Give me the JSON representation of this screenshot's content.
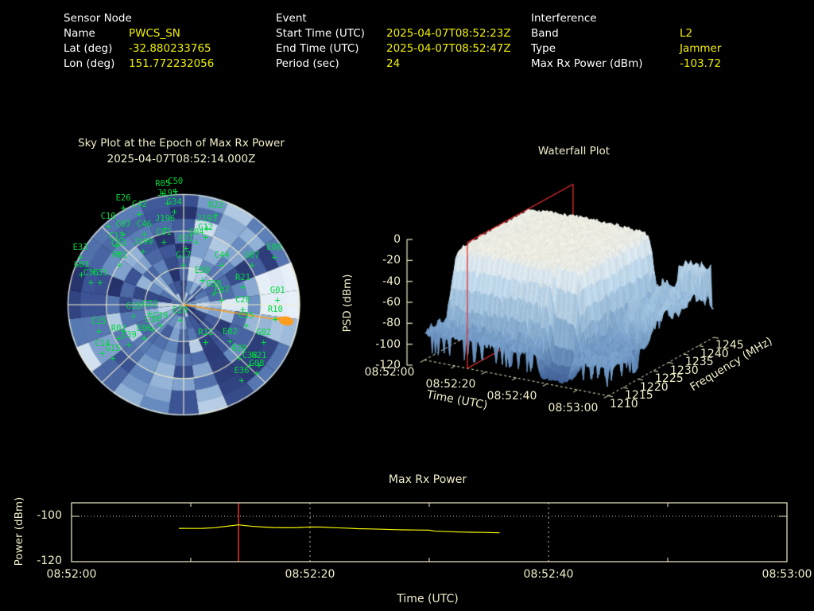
{
  "header": {
    "sensor_node": {
      "title": "Sensor Node",
      "rows": [
        {
          "label": "Name",
          "value": "PWCS_SN"
        },
        {
          "label": "Lat (deg)",
          "value": "-32.880233765"
        },
        {
          "label": "Lon (deg)",
          "value": "151.772232056"
        }
      ]
    },
    "event": {
      "title": "Event",
      "rows": [
        {
          "label": "Start Time (UTC)",
          "value": "2025-04-07T08:52:23Z"
        },
        {
          "label": "End Time (UTC)",
          "value": "2025-04-07T08:52:47Z"
        },
        {
          "label": "Period (sec)",
          "value": "24"
        }
      ]
    },
    "interference": {
      "title": "Interference",
      "rows": [
        {
          "label": "Band",
          "value": "L2"
        },
        {
          "label": "Type",
          "value": "Jammer"
        },
        {
          "label": "Max Rx Power (dBm)",
          "value": "-103.72"
        }
      ]
    }
  },
  "colors": {
    "background": "#000000",
    "label_white": "#ffffff",
    "value_yellow": "#f0f000",
    "axis_cream": "#f2eecb",
    "satellite_green": "#00d93e",
    "bearing_orange": "#ff9d1e",
    "epoch_red": "#e62e2e",
    "power_line_yellow": "#f5f500",
    "sky_palette": [
      "#232e66",
      "#3d5596",
      "#6186bc",
      "#94b3d7",
      "#c7d9eb",
      "#eff5fc"
    ],
    "wf_colors": [
      "#3e5e96",
      "#749cc8",
      "#9dc0dd",
      "#c6ddee",
      "#e2ebf0",
      "#f1edde",
      "#f8f2e0"
    ]
  },
  "chart_data": [
    {
      "type": "heatmap",
      "name": "sky_plot",
      "title": "Sky Plot at the Epoch of Max Rx Power",
      "subtitle": "2025-04-07T08:52:14.000Z",
      "projection": "polar-sky",
      "elevation_rings_deg": [
        0,
        30,
        60
      ],
      "azimuth_spokes_deg": [
        0,
        45,
        90,
        135,
        180,
        225,
        270,
        315
      ],
      "jammer_bearing": {
        "x": 0.885,
        "y": 0.14,
        "note": "orange bearing line from zenith to horizon marker"
      },
      "satellites": [
        {
          "id": "R05",
          "x": -0.18,
          "y": -1.01
        },
        {
          "id": "C50",
          "x": -0.07,
          "y": -1.03
        },
        {
          "id": "E26",
          "x": -0.52,
          "y": -0.88
        },
        {
          "id": "J195",
          "x": -0.14,
          "y": -0.92
        },
        {
          "id": "C42",
          "x": -0.38,
          "y": -0.82
        },
        {
          "id": "G34",
          "x": -0.08,
          "y": -0.84
        },
        {
          "id": "R22",
          "x": 0.28,
          "y": -0.81
        },
        {
          "id": "C10",
          "x": -0.65,
          "y": -0.71
        },
        {
          "id": "J196",
          "x": -0.16,
          "y": -0.69
        },
        {
          "id": "J193",
          "x": 0.2,
          "y": -0.69
        },
        {
          "id": "C07",
          "x": -0.52,
          "y": -0.64
        },
        {
          "id": "C46",
          "x": -0.34,
          "y": -0.64
        },
        {
          "id": "G12",
          "x": 0.19,
          "y": -0.61
        },
        {
          "id": "C11",
          "x": -0.58,
          "y": -0.53
        },
        {
          "id": "C03",
          "x": -0.56,
          "y": -0.47
        },
        {
          "id": "J199",
          "x": -0.35,
          "y": -0.48
        },
        {
          "id": "C01",
          "x": -0.17,
          "y": -0.57
        },
        {
          "id": "G04",
          "x": 0.11,
          "y": -0.57
        },
        {
          "id": "E21",
          "x": 0.02,
          "y": -0.51
        },
        {
          "id": "E33",
          "x": -0.89,
          "y": -0.43
        },
        {
          "id": "R01",
          "x": -0.55,
          "y": -0.36
        },
        {
          "id": "G17",
          "x": 0.0,
          "y": -0.36
        },
        {
          "id": "C44",
          "x": 0.33,
          "y": -0.36
        },
        {
          "id": "G07",
          "x": 0.59,
          "y": -0.36
        },
        {
          "id": "E08",
          "x": 0.78,
          "y": -0.43
        },
        {
          "id": "G03",
          "x": -0.88,
          "y": -0.27
        },
        {
          "id": "C36",
          "x": -0.8,
          "y": -0.2
        },
        {
          "id": "C33",
          "x": -0.72,
          "y": -0.2
        },
        {
          "id": "E50",
          "x": 0.16,
          "y": -0.22
        },
        {
          "id": "R21",
          "x": 0.51,
          "y": -0.16
        },
        {
          "id": "G30",
          "x": 0.26,
          "y": -0.1
        },
        {
          "id": "E07",
          "x": 0.33,
          "y": -0.04
        },
        {
          "id": "G01",
          "x": 0.81,
          "y": -0.04
        },
        {
          "id": "C26",
          "x": 0.51,
          "y": 0.04
        },
        {
          "id": "R10",
          "x": 0.79,
          "y": 0.13
        },
        {
          "id": "G18",
          "x": -0.43,
          "y": 0.1
        },
        {
          "id": "G22",
          "x": -0.29,
          "y": 0.08
        },
        {
          "id": "E20",
          "x": -0.03,
          "y": 0.14
        },
        {
          "id": "C39",
          "x": -0.2,
          "y": 0.19
        },
        {
          "id": "C34",
          "x": -0.27,
          "y": 0.22
        },
        {
          "id": "C35",
          "x": 0.54,
          "y": 0.19
        },
        {
          "id": "C25",
          "x": -0.73,
          "y": 0.24
        },
        {
          "id": "R02",
          "x": -0.56,
          "y": 0.3
        },
        {
          "id": "E06",
          "x": -0.34,
          "y": 0.3
        },
        {
          "id": "E39",
          "x": -0.47,
          "y": 0.36
        },
        {
          "id": "R11",
          "x": 0.19,
          "y": 0.34
        },
        {
          "id": "E02",
          "x": 0.4,
          "y": 0.33
        },
        {
          "id": "G02",
          "x": 0.69,
          "y": 0.34
        },
        {
          "id": "C14",
          "x": -0.7,
          "y": 0.44
        },
        {
          "id": "G15",
          "x": -0.61,
          "y": 0.48
        },
        {
          "id": "R20",
          "x": 0.48,
          "y": 0.48
        },
        {
          "id": "C38",
          "x": 0.57,
          "y": 0.55
        },
        {
          "id": "G21",
          "x": 0.65,
          "y": 0.55
        },
        {
          "id": "G08",
          "x": 0.63,
          "y": 0.62
        },
        {
          "id": "E36",
          "x": 0.5,
          "y": 0.68
        }
      ]
    },
    {
      "type": "heatmap",
      "name": "waterfall_3d_surface",
      "title": "Waterfall Plot",
      "xlabel": "Time (UTC)",
      "ylabel": "Frequency (MHz)",
      "zlabel": "PSD (dBm)",
      "time_ticks": [
        "08:52:00",
        "08:52:20",
        "08:52:40",
        "08:53:00"
      ],
      "time_tick_s": [
        0,
        20,
        40,
        60
      ],
      "freq_ticks": [
        1210,
        1215,
        1220,
        1225,
        1230,
        1235,
        1240,
        1245
      ],
      "psd_ticks": [
        0,
        -20,
        -40,
        -60,
        -80,
        -100,
        -120
      ],
      "psd_range": [
        -120,
        0
      ],
      "freq_range_mhz": [
        1210,
        1245
      ],
      "noise_floor_dbm": -95,
      "psd_plateau_dbm": -16,
      "jam_time_range_s": [
        3,
        45
      ],
      "jam_freq_range_mhz": [
        1215,
        1241
      ],
      "slice_epoch_utc": "08:52:14",
      "slice_time_s": 14
    },
    {
      "type": "line",
      "name": "max_rx_power",
      "title": "Max Rx Power",
      "xlabel": "Time (UTC)",
      "ylabel": "Power (dBm)",
      "x_ticks": [
        "08:52:00",
        "08:52:20",
        "08:52:40",
        "08:53:00"
      ],
      "x_tick_s": [
        0,
        20,
        40,
        60
      ],
      "x_minor_tick_s": [
        10,
        30,
        50
      ],
      "y_ticks": [
        -100,
        -120
      ],
      "ylim": [
        -120,
        -94
      ],
      "grid_times_s": [
        20,
        40
      ],
      "grid_power_dbm": -100,
      "epoch_marker_s": 14,
      "series": [
        [
          9,
          -105.3
        ],
        [
          10,
          -105.35
        ],
        [
          11,
          -105.3
        ],
        [
          12,
          -105.0
        ],
        [
          13,
          -104.4
        ],
        [
          14,
          -103.75
        ],
        [
          15,
          -104.3
        ],
        [
          16,
          -104.7
        ],
        [
          17,
          -104.95
        ],
        [
          18,
          -105.05
        ],
        [
          19,
          -104.95
        ],
        [
          20,
          -104.7
        ],
        [
          21,
          -104.75
        ],
        [
          22,
          -105.0
        ],
        [
          23,
          -105.2
        ],
        [
          24,
          -105.45
        ],
        [
          25,
          -105.55
        ],
        [
          26,
          -105.7
        ],
        [
          27,
          -105.85
        ],
        [
          28,
          -105.95
        ],
        [
          29,
          -106.05
        ],
        [
          30,
          -106.1
        ],
        [
          30.5,
          -106.55
        ],
        [
          31.5,
          -106.75
        ],
        [
          32.5,
          -106.9
        ],
        [
          33.5,
          -107.0
        ],
        [
          34.5,
          -107.1
        ],
        [
          35.9,
          -107.25
        ]
      ]
    }
  ]
}
